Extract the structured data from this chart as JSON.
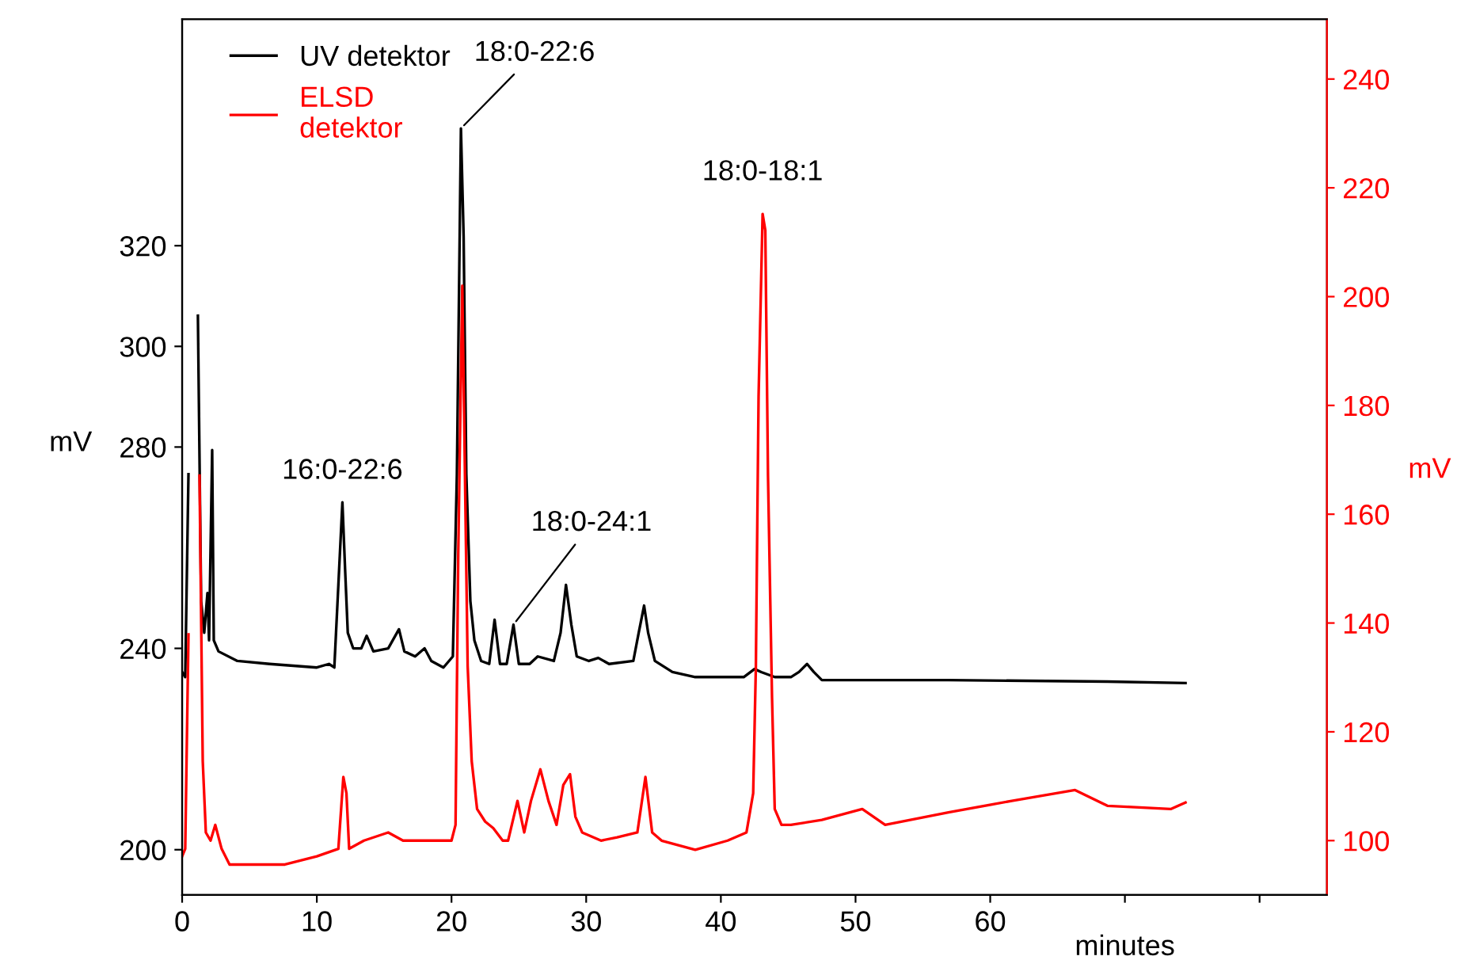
{
  "chart_data": {
    "type": "line",
    "xlabel": "minutes",
    "ylabel": "mV",
    "y2label": "mV",
    "xlim": [
      0,
      85
    ],
    "xticks": [
      0,
      10,
      20,
      30,
      40,
      50,
      60,
      {
        "value": 70,
        "label": null
      },
      {
        "value": 80,
        "label": null
      }
    ],
    "ylim": [
      191,
      365
    ],
    "yticks": [
      200,
      240,
      280,
      300,
      320
    ],
    "y2lim": [
      90,
      251
    ],
    "y2ticks": [
      100,
      120,
      140,
      160,
      180,
      200,
      220,
      240
    ],
    "legend": "top left",
    "grid": false,
    "marker": "none",
    "line_style": "solid",
    "series": [
      {
        "name": "UV detektor",
        "color": "#000000",
        "x": [
          0,
          0.23,
          0.47,
          0.59,
          0.82,
          1.06,
          1.17,
          1.41,
          1.64,
          1.88,
          2.0,
          2.23,
          2.35,
          2.7,
          4.1,
          6.5,
          10.0,
          10.9,
          11.3,
          11.6,
          11.9,
          12.1,
          12.3,
          12.7,
          13.3,
          13.7,
          14.2,
          15.3,
          16.1,
          16.5,
          17.3,
          18.0,
          18.5,
          19.4,
          20.1,
          20.4,
          20.7,
          20.9,
          21.1,
          21.4,
          21.7,
          22.2,
          22.8,
          23.2,
          23.6,
          24.1,
          24.6,
          25.0,
          25.8,
          26.4,
          27.6,
          28.1,
          28.5,
          28.9,
          29.3,
          30.2,
          30.9,
          31.7,
          33.5,
          33.9,
          34.3,
          34.6,
          35.1,
          36.4,
          38.1,
          41.7,
          42.5,
          43.0,
          44.0,
          45.2,
          45.8,
          46.4,
          46.9,
          47.5,
          56.9,
          68.7,
          74.5
        ],
        "values": [
          235.3,
          234.3,
          274.6,
          null,
          null,
          null,
          306.1,
          249.4,
          243.1,
          251.0,
          241.6,
          279.4,
          241.6,
          239.4,
          237.5,
          236.9,
          236.2,
          236.9,
          236.2,
          252.6,
          269.0,
          255.7,
          243.1,
          240.0,
          240.0,
          242.5,
          239.4,
          240.0,
          243.8,
          239.4,
          238.4,
          240.0,
          237.5,
          236.2,
          238.4,
          274.6,
          343.3,
          321.9,
          274.6,
          249.4,
          241.6,
          237.5,
          236.9,
          245.7,
          236.9,
          236.9,
          244.7,
          236.9,
          236.9,
          238.4,
          237.5,
          243.1,
          252.6,
          244.7,
          238.4,
          237.5,
          238.1,
          236.9,
          237.5,
          243.1,
          248.5,
          243.1,
          237.5,
          235.3,
          234.3,
          234.3,
          235.9,
          235.3,
          234.3,
          234.3,
          235.3,
          236.9,
          235.3,
          233.7,
          233.7,
          233.4,
          233.1
        ]
      },
      {
        "name": "ELSD\ndetektor",
        "color": "#ff0000",
        "axis": "y2",
        "x": [
          0,
          0.23,
          0.47,
          0.7,
          1.06,
          1.29,
          1.53,
          1.76,
          2.11,
          2.46,
          2.93,
          3.52,
          5.28,
          7.63,
          10.0,
          11.6,
          11.97,
          12.2,
          12.4,
          13.5,
          15.3,
          16.4,
          18.2,
          20.0,
          20.3,
          20.5,
          20.8,
          21.0,
          21.2,
          21.5,
          21.9,
          22.5,
          23.1,
          23.8,
          24.2,
          24.9,
          25.4,
          25.9,
          26.6,
          27.2,
          27.8,
          28.3,
          28.8,
          29.2,
          29.7,
          31.1,
          32.3,
          33.8,
          34.4,
          34.9,
          35.6,
          38.1,
          40.5,
          41.9,
          42.4,
          42.6,
          42.8,
          43.1,
          43.3,
          43.5,
          43.8,
          44.0,
          44.5,
          45.2,
          47.5,
          50.5,
          52.2,
          56.9,
          61.6,
          66.3,
          68.7,
          73.4,
          74.5
        ],
        "values": [
          97.1,
          98.5,
          137.9,
          null,
          null,
          167.1,
          114.6,
          101.5,
          100,
          102.9,
          98.5,
          95.6,
          95.6,
          95.6,
          97.1,
          98.5,
          111.7,
          108.7,
          98.5,
          100,
          101.5,
          100,
          100,
          100,
          102.9,
          152.5,
          202.0,
          167.1,
          132.1,
          114.6,
          105.8,
          103.5,
          102.3,
          100,
          100,
          107.3,
          101.5,
          107.3,
          113.1,
          107.3,
          102.9,
          110.2,
          112.2,
          104.4,
          101.5,
          100,
          100.6,
          101.5,
          111.7,
          101.5,
          100,
          98.3,
          100,
          101.5,
          108.7,
          132.1,
          181.6,
          215.2,
          212.2,
          167.1,
          126.2,
          105.8,
          102.9,
          102.9,
          103.8,
          105.8,
          102.9,
          105.2,
          107.3,
          109.3,
          106.4,
          105.8,
          107.0
        ]
      }
    ],
    "annotations": [
      {
        "text": "16:0-22:6",
        "x": 11.9,
        "y": 269.0
      },
      {
        "text": "18:0-22:6",
        "x": 20.7,
        "y": 343.3
      },
      {
        "text": "18:0-24:1",
        "x": 24.6,
        "y": 244.7
      },
      {
        "text": "18:0-18:1",
        "x": 43.1,
        "y": 326.6
      }
    ]
  }
}
